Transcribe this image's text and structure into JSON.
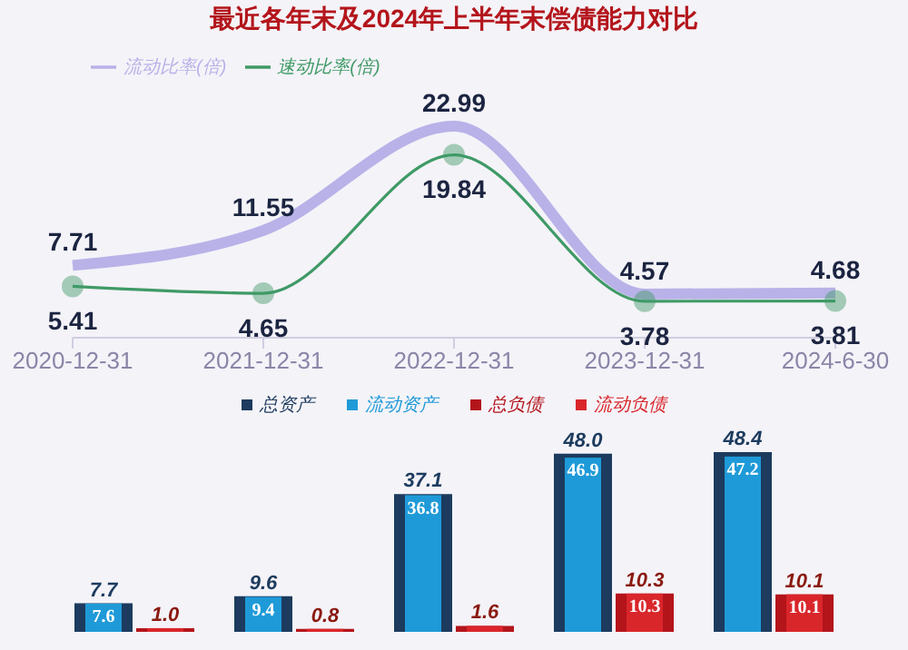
{
  "chart_data": [
    {
      "type": "line",
      "title": "最近各年末及2024年上半年末偿债能力对比",
      "categories": [
        "2020-12-31",
        "2021-12-31",
        "2022-12-31",
        "2023-12-31",
        "2024-6-30"
      ],
      "series": [
        {
          "name": "流动比率(倍)",
          "color": "#b8b2e8",
          "values": [
            7.71,
            11.55,
            22.99,
            4.57,
            4.68
          ],
          "marker": "none"
        },
        {
          "name": "速动比率(倍)",
          "color": "#3f9a66",
          "values": [
            5.41,
            4.65,
            19.84,
            3.78,
            3.81
          ],
          "marker": "circle"
        }
      ],
      "data_labels": true,
      "legend": "top left",
      "tick_labels": "x",
      "grid": false
    },
    {
      "type": "bar",
      "categories": [
        null,
        null,
        null,
        null,
        null
      ],
      "series": [
        {
          "name": "总资产",
          "color": "#1c3b5e",
          "values": [
            7.7,
            9.6,
            37.1,
            48.0,
            48.4
          ],
          "value_labels": [
            "7.7",
            "9.6",
            "37.1",
            "48.0",
            "48.4"
          ]
        },
        {
          "name": "流动资产",
          "color": "#1f9ad8",
          "values": [
            7.6,
            9.4,
            36.8,
            46.9,
            47.2
          ],
          "value_labels": [
            "7.6",
            "9.4",
            "36.8",
            "46.9",
            "47.2"
          ]
        },
        {
          "name": "总负债",
          "color": "#b3151b",
          "values": [
            1.0,
            0.8,
            1.6,
            10.3,
            10.1
          ],
          "value_labels": [
            "1.0",
            "0.8",
            "1.6",
            "10.3",
            "10.1"
          ]
        },
        {
          "name": "流动负债",
          "color": "#d9262b",
          "values": [
            1.0,
            0.8,
            1.6,
            10.3,
            10.1
          ],
          "value_labels": [
            null,
            null,
            null,
            "10.3",
            "10.1"
          ]
        }
      ],
      "legend": "top",
      "tick_labels": false,
      "grid": false
    }
  ]
}
